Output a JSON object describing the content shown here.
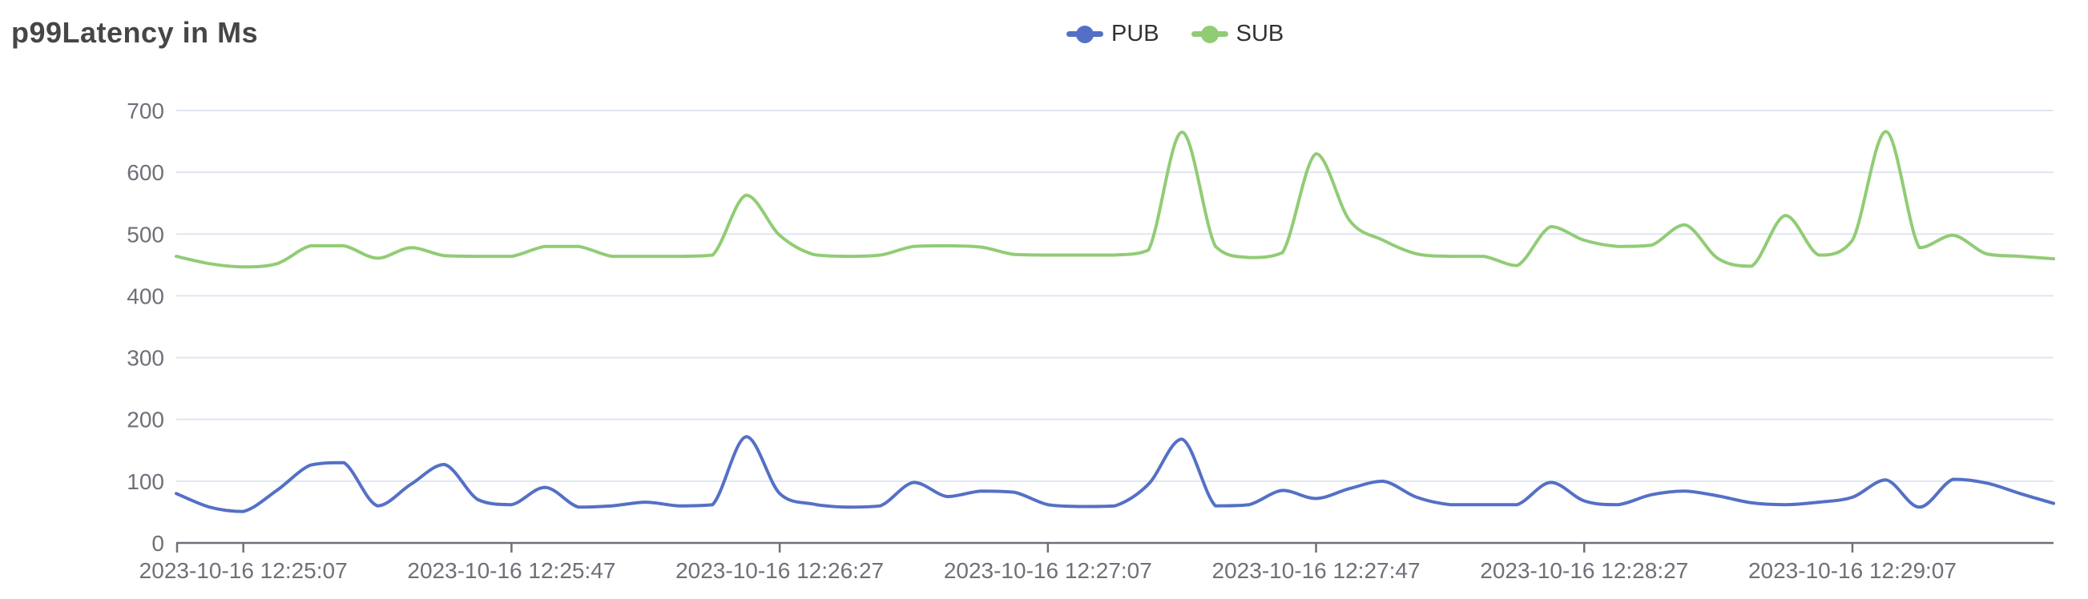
{
  "page": {
    "title": "p99Latency in Ms"
  },
  "legend": {
    "items": [
      {
        "label": "PUB",
        "color": "#5470c6"
      },
      {
        "label": "SUB",
        "color": "#91cc75"
      }
    ]
  },
  "axis": {
    "y_ticks": [
      0,
      100,
      200,
      300,
      400,
      500,
      600,
      700
    ],
    "x_tick_indices": [
      2,
      10,
      18,
      26,
      34,
      42,
      50
    ]
  },
  "style": {
    "grid_color": "#e0e6f1",
    "axis_color": "#6e7079",
    "label_color": "#6e7079",
    "title_color": "#464646",
    "legend_text_color": "#333333",
    "background": "#ffffff"
  },
  "chart_data": {
    "type": "line",
    "title": "p99Latency in Ms",
    "smooth": true,
    "grid": true,
    "legend_position": "top-center",
    "xlabel": "",
    "ylabel": "",
    "ylim": [
      0,
      700
    ],
    "x": [
      "2023-10-16 12:24:57",
      "2023-10-16 12:25:02",
      "2023-10-16 12:25:07",
      "2023-10-16 12:25:12",
      "2023-10-16 12:25:17",
      "2023-10-16 12:25:22",
      "2023-10-16 12:25:27",
      "2023-10-16 12:25:32",
      "2023-10-16 12:25:37",
      "2023-10-16 12:25:42",
      "2023-10-16 12:25:47",
      "2023-10-16 12:25:52",
      "2023-10-16 12:25:57",
      "2023-10-16 12:26:02",
      "2023-10-16 12:26:07",
      "2023-10-16 12:26:12",
      "2023-10-16 12:26:17",
      "2023-10-16 12:26:22",
      "2023-10-16 12:26:27",
      "2023-10-16 12:26:32",
      "2023-10-16 12:26:37",
      "2023-10-16 12:26:42",
      "2023-10-16 12:26:47",
      "2023-10-16 12:26:52",
      "2023-10-16 12:26:57",
      "2023-10-16 12:27:02",
      "2023-10-16 12:27:07",
      "2023-10-16 12:27:12",
      "2023-10-16 12:27:17",
      "2023-10-16 12:27:22",
      "2023-10-16 12:27:27",
      "2023-10-16 12:27:32",
      "2023-10-16 12:27:37",
      "2023-10-16 12:27:42",
      "2023-10-16 12:27:47",
      "2023-10-16 12:27:52",
      "2023-10-16 12:27:57",
      "2023-10-16 12:28:02",
      "2023-10-16 12:28:07",
      "2023-10-16 12:28:12",
      "2023-10-16 12:28:17",
      "2023-10-16 12:28:22",
      "2023-10-16 12:28:27",
      "2023-10-16 12:28:32",
      "2023-10-16 12:28:37",
      "2023-10-16 12:28:42",
      "2023-10-16 12:28:47",
      "2023-10-16 12:28:52",
      "2023-10-16 12:28:57",
      "2023-10-16 12:29:02",
      "2023-10-16 12:29:07",
      "2023-10-16 12:29:12",
      "2023-10-16 12:29:17",
      "2023-10-16 12:29:22",
      "2023-10-16 12:29:27",
      "2023-10-16 12:29:32",
      "2023-10-16 12:29:37"
    ],
    "series": [
      {
        "name": "PUB",
        "color": "#5470c6",
        "values": [
          80,
          58,
          51,
          85,
          126,
          130,
          60,
          95,
          127,
          70,
          62,
          90,
          58,
          60,
          66,
          60,
          62,
          172,
          80,
          63,
          58,
          60,
          98,
          75,
          84,
          82,
          62,
          59,
          60,
          95,
          168,
          60,
          62,
          85,
          72,
          88,
          100,
          74,
          62,
          62,
          62,
          98,
          68,
          62,
          78,
          84,
          76,
          65,
          62,
          66,
          74,
          102,
          58,
          103,
          97,
          80,
          64
        ]
      },
      {
        "name": "SUB",
        "color": "#91cc75",
        "values": [
          464,
          452,
          447,
          452,
          481,
          481,
          461,
          478,
          465,
          464,
          464,
          480,
          480,
          464,
          464,
          464,
          466,
          563,
          498,
          467,
          464,
          466,
          480,
          481,
          479,
          467,
          466,
          466,
          466,
          474,
          665,
          480,
          462,
          470,
          630,
          522,
          490,
          468,
          464,
          464,
          449,
          512,
          490,
          480,
          482,
          515,
          460,
          448,
          530,
          466,
          490,
          666,
          478,
          498,
          468,
          464,
          460
        ]
      }
    ]
  }
}
